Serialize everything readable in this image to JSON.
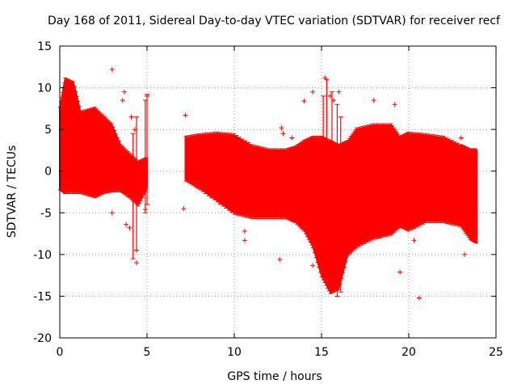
{
  "chart_data": {
    "type": "scatter",
    "title": "Day 168 of 2011, Sidereal Day-to-day VTEC variation (SDTVAR) for receiver recf",
    "xlabel": "GPS time / hours",
    "ylabel": "SDTVAR / TECUs",
    "xlim": [
      0,
      25
    ],
    "ylim": [
      -20,
      15
    ],
    "xticks": [
      0,
      5,
      10,
      15,
      20,
      25
    ],
    "xtick_labels": [
      "0",
      "5",
      "10",
      "15",
      "20",
      "25"
    ],
    "yticks": [
      -20,
      -15,
      -10,
      -5,
      0,
      5,
      10,
      15
    ],
    "ytick_labels": [
      "-20",
      "-15",
      "-10",
      "-5",
      "0",
      "5",
      "10",
      "15"
    ],
    "grid": true,
    "marker": "+",
    "color": "#ff0000",
    "series": [
      {
        "name": "SDTVAR",
        "envelope": {
          "x": [
            0.0,
            0.3,
            0.8,
            1.2,
            2.0,
            2.5,
            3.0,
            3.5,
            4.0,
            4.5,
            5.0,
            7.2,
            8.0,
            9.0,
            10.0,
            11.0,
            12.0,
            13.0,
            13.5,
            14.0,
            14.5,
            15.0,
            15.5,
            16.0,
            16.5,
            17.0,
            18.0,
            19.0,
            19.5,
            20.0,
            21.0,
            22.0,
            23.0,
            23.5,
            23.9
          ],
          "upper": [
            7.5,
            11.0,
            10.5,
            7.0,
            7.5,
            6.5,
            5.5,
            3.0,
            2.0,
            1.0,
            1.5,
            4.0,
            4.3,
            4.5,
            4.3,
            3.0,
            2.5,
            2.5,
            2.8,
            3.5,
            4.0,
            4.0,
            3.5,
            3.0,
            3.5,
            5.0,
            5.5,
            5.5,
            4.0,
            4.5,
            4.3,
            4.0,
            3.0,
            2.5,
            2.5
          ],
          "lower": [
            -2.0,
            -2.5,
            -2.5,
            -2.5,
            -3.0,
            -2.5,
            -2.3,
            -2.3,
            -3.0,
            -4.0,
            -2.0,
            -1.0,
            -2.0,
            -3.5,
            -5.0,
            -5.5,
            -5.5,
            -5.5,
            -6.0,
            -7.0,
            -9.0,
            -12.5,
            -14.5,
            -14.0,
            -10.0,
            -9.0,
            -8.0,
            -7.5,
            -6.5,
            -7.0,
            -6.0,
            -6.0,
            -6.5,
            -8.0,
            -8.5
          ]
        },
        "outliers": [
          [
            3.0,
            12.2
          ],
          [
            3.6,
            8.5
          ],
          [
            3.7,
            9.5
          ],
          [
            4.1,
            6.5
          ],
          [
            4.3,
            5.0
          ],
          [
            3.0,
            -5.0
          ],
          [
            3.8,
            -6.4
          ],
          [
            4.0,
            -6.8
          ],
          [
            4.4,
            -11.0
          ],
          [
            4.4,
            -9.5
          ],
          [
            7.2,
            6.7
          ],
          [
            7.1,
            -4.5
          ],
          [
            10.6,
            -7.2
          ],
          [
            10.6,
            -8.3
          ],
          [
            12.6,
            -10.6
          ],
          [
            12.7,
            5.2
          ],
          [
            12.8,
            4.5
          ],
          [
            13.3,
            4.0
          ],
          [
            14.0,
            8.4
          ],
          [
            14.5,
            9.5
          ],
          [
            14.5,
            -11.3
          ],
          [
            15.2,
            11.2
          ],
          [
            15.5,
            9.0
          ],
          [
            15.7,
            8.5
          ],
          [
            16.0,
            9.5
          ],
          [
            18.0,
            8.5
          ],
          [
            19.2,
            8.0
          ],
          [
            19.5,
            -12.1
          ],
          [
            20.3,
            -8.3
          ],
          [
            20.6,
            -15.2
          ],
          [
            23.0,
            4.0
          ],
          [
            23.2,
            -10.0
          ],
          [
            5.0,
            9.0
          ],
          [
            4.9,
            -4.6
          ]
        ],
        "spikes": [
          [
            4.2,
            -10.5,
            4.5
          ],
          [
            4.4,
            -9.5,
            6.5
          ],
          [
            4.9,
            -5.0,
            8.5
          ],
          [
            5.0,
            -4.0,
            9.2
          ],
          [
            15.3,
            -12.0,
            11.0
          ],
          [
            15.1,
            -11.5,
            9.0
          ],
          [
            15.6,
            -13.0,
            9.5
          ],
          [
            15.9,
            -15.0,
            8.0
          ],
          [
            16.1,
            -14.5,
            6.5
          ]
        ]
      }
    ]
  }
}
